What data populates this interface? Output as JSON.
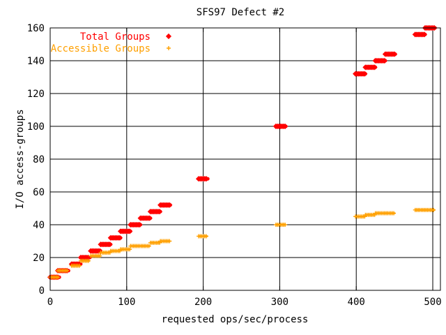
{
  "chart_data": {
    "type": "scatter",
    "title": "SFS97 Defect #2",
    "xlabel": "requested ops/sec/process",
    "ylabel": "I/O access-groups",
    "xlim": [
      0,
      510
    ],
    "ylim": [
      0,
      160
    ],
    "xticks": [
      0,
      100,
      200,
      300,
      400,
      500
    ],
    "yticks": [
      0,
      20,
      40,
      60,
      80,
      100,
      120,
      140,
      160
    ],
    "grid": true,
    "legend": "top-left",
    "series": [
      {
        "name": "Total Groups",
        "color": "#ff0000",
        "marker": "diamond",
        "segments": [
          {
            "x0": 0,
            "x1": 12,
            "y": 8
          },
          {
            "x0": 10,
            "x1": 24,
            "y": 12
          },
          {
            "x0": 28,
            "x1": 40,
            "y": 16
          },
          {
            "x0": 40,
            "x1": 52,
            "y": 20
          },
          {
            "x0": 53,
            "x1": 66,
            "y": 24
          },
          {
            "x0": 66,
            "x1": 79,
            "y": 28
          },
          {
            "x0": 79,
            "x1": 92,
            "y": 32
          },
          {
            "x0": 92,
            "x1": 105,
            "y": 36
          },
          {
            "x0": 105,
            "x1": 118,
            "y": 40
          },
          {
            "x0": 118,
            "x1": 131,
            "y": 44
          },
          {
            "x0": 131,
            "x1": 144,
            "y": 48
          },
          {
            "x0": 144,
            "x1": 157,
            "y": 52
          },
          {
            "x0": 194,
            "x1": 206,
            "y": 68
          },
          {
            "x0": 295,
            "x1": 308,
            "y": 100
          },
          {
            "x0": 399,
            "x1": 412,
            "y": 132
          },
          {
            "x0": 412,
            "x1": 425,
            "y": 136
          },
          {
            "x0": 425,
            "x1": 438,
            "y": 140
          },
          {
            "x0": 438,
            "x1": 451,
            "y": 144
          },
          {
            "x0": 477,
            "x1": 490,
            "y": 156
          },
          {
            "x0": 490,
            "x1": 503,
            "y": 160
          }
        ]
      },
      {
        "name": "Accessible Groups",
        "color": "#ffa000",
        "marker": "plus",
        "segments": [
          {
            "x0": 0,
            "x1": 12,
            "y": 8
          },
          {
            "x0": 10,
            "x1": 24,
            "y": 12
          },
          {
            "x0": 28,
            "x1": 40,
            "y": 15
          },
          {
            "x0": 40,
            "x1": 52,
            "y": 18
          },
          {
            "x0": 53,
            "x1": 66,
            "y": 21
          },
          {
            "x0": 66,
            "x1": 79,
            "y": 23
          },
          {
            "x0": 79,
            "x1": 92,
            "y": 24
          },
          {
            "x0": 92,
            "x1": 105,
            "y": 25
          },
          {
            "x0": 105,
            "x1": 131,
            "y": 27
          },
          {
            "x0": 131,
            "x1": 144,
            "y": 29
          },
          {
            "x0": 144,
            "x1": 157,
            "y": 30
          },
          {
            "x0": 194,
            "x1": 206,
            "y": 33
          },
          {
            "x0": 295,
            "x1": 308,
            "y": 40
          },
          {
            "x0": 399,
            "x1": 412,
            "y": 45
          },
          {
            "x0": 412,
            "x1": 425,
            "y": 46
          },
          {
            "x0": 425,
            "x1": 451,
            "y": 47
          },
          {
            "x0": 477,
            "x1": 503,
            "y": 49
          }
        ]
      }
    ]
  }
}
